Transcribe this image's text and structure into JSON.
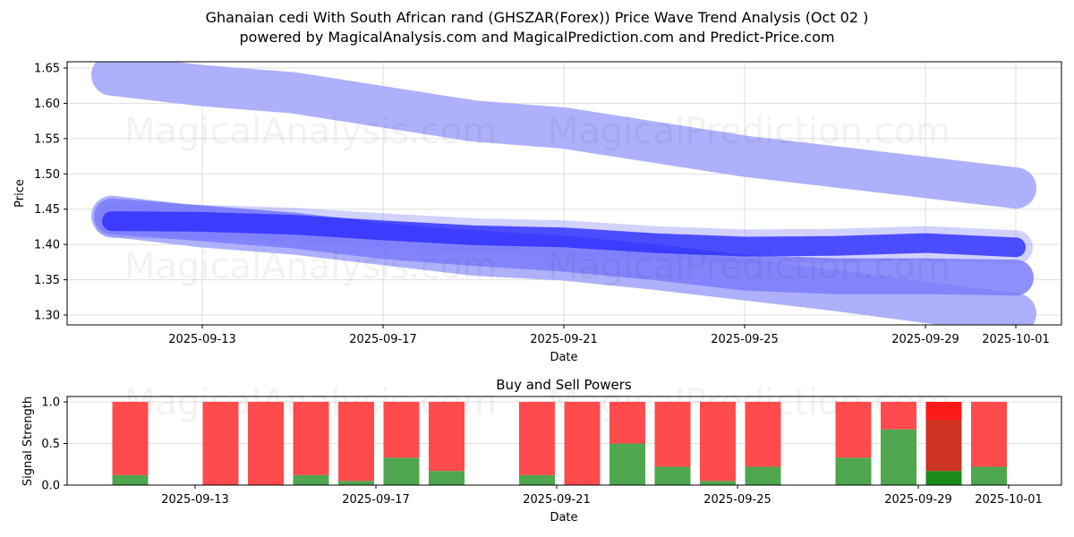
{
  "header": {
    "title": "Ghanaian cedi With South African rand (GHSZAR(Forex)) Price Wave Trend Analysis (Oct 02 )",
    "subtitle": "powered by MagicalAnalysis.com and MagicalPrediction.com and Predict-Price.com"
  },
  "watermarks": [
    "MagicalAnalysis.com",
    "MagicalPrediction.com"
  ],
  "colors": {
    "wave_light": "#aeb0fb",
    "wave_mid": "#7a7cfb",
    "wave_dark": "#2b2bff",
    "buy": "#4ea64e",
    "sell": "#ff4b4b",
    "buy_dark": "#1a8c1a",
    "sell_dark": "#cc3320",
    "sell_bright": "#ff1a1a"
  },
  "chart_data": [
    {
      "type": "area",
      "title": "",
      "xlabel": "Date",
      "ylabel": "Price",
      "ylim": [
        1.285,
        1.66
      ],
      "xlim": [
        "2025-09-10",
        "2025-10-02"
      ],
      "x_ticks": [
        "2025-09-13",
        "2025-09-17",
        "2025-09-21",
        "2025-09-25",
        "2025-09-29",
        "2025-10-01"
      ],
      "y_ticks": [
        "1.30",
        "1.35",
        "1.40",
        "1.45",
        "1.50",
        "1.55",
        "1.60",
        "1.65"
      ],
      "grid": true,
      "x": [
        "2025-09-11",
        "2025-09-13",
        "2025-09-15",
        "2025-09-17",
        "2025-09-19",
        "2025-09-21",
        "2025-09-23",
        "2025-09-25",
        "2025-09-27",
        "2025-09-29",
        "2025-10-01"
      ],
      "series": [
        {
          "name": "upper wave",
          "style": "light",
          "values": [
            1.64,
            1.625,
            1.615,
            1.595,
            1.575,
            1.565,
            1.545,
            1.525,
            1.51,
            1.495,
            1.48
          ]
        },
        {
          "name": "lower wave outer",
          "style": "light",
          "values": [
            1.44,
            1.425,
            1.415,
            1.4,
            1.385,
            1.378,
            1.365,
            1.35,
            1.335,
            1.318,
            1.302
          ]
        },
        {
          "name": "lower wave inner",
          "style": "mid",
          "values": [
            1.44,
            1.43,
            1.42,
            1.405,
            1.395,
            1.387,
            1.375,
            1.36,
            1.355,
            1.355,
            1.353
          ]
        },
        {
          "name": "core trend",
          "style": "dark",
          "values": [
            1.433,
            1.432,
            1.428,
            1.42,
            1.413,
            1.41,
            1.402,
            1.397,
            1.398,
            1.402,
            1.396
          ]
        }
      ]
    },
    {
      "type": "bar",
      "title": "Buy and Sell Powers",
      "xlabel": "Date",
      "ylabel": "Signal Strength",
      "ylim": [
        0,
        1.05
      ],
      "y_ticks": [
        "0.0",
        "0.5",
        "1.0"
      ],
      "x_ticks": [
        "2025-09-13",
        "2025-09-17",
        "2025-09-21",
        "2025-09-25",
        "2025-09-29",
        "2025-10-01"
      ],
      "grid": true,
      "categories": [
        "2025-09-11",
        "2025-09-13",
        "2025-09-14",
        "2025-09-15",
        "2025-09-16",
        "2025-09-17",
        "2025-09-18",
        "2025-09-20",
        "2025-09-21",
        "2025-09-22",
        "2025-09-23",
        "2025-09-24",
        "2025-09-25",
        "2025-09-27",
        "2025-09-28",
        "2025-09-29",
        "2025-09-30"
      ],
      "series": [
        {
          "name": "Buy",
          "values": [
            0.12,
            0.0,
            0.0,
            0.12,
            0.05,
            0.33,
            0.17,
            0.12,
            0.0,
            0.5,
            0.22,
            0.05,
            0.22,
            0.33,
            0.67,
            0.17,
            0.22
          ]
        },
        {
          "name": "Sell",
          "values": [
            0.88,
            1.0,
            1.0,
            0.88,
            0.95,
            0.67,
            0.83,
            0.88,
            1.0,
            0.5,
            0.78,
            0.95,
            0.78,
            0.67,
            0.33,
            0.83,
            0.78
          ]
        }
      ],
      "highlight_index": 15
    }
  ]
}
